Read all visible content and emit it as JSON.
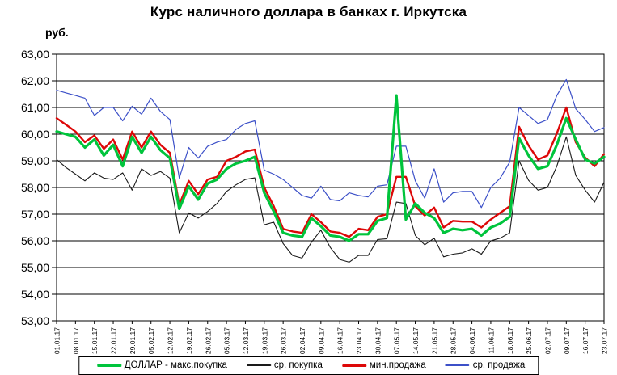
{
  "chart_data": {
    "type": "line",
    "title": "Курс наличного доллара в банках г. Иркутска",
    "y_axis_unit": "руб.",
    "ylim": [
      53,
      63
    ],
    "ytick_step": 1,
    "ytick_labels": [
      "63,00",
      "62,00",
      "61,00",
      "60,00",
      "59,00",
      "58,00",
      "57,00",
      "56,00",
      "55,00",
      "54,00",
      "53,00"
    ],
    "x_labels": [
      "01.01.17",
      "08.01.17",
      "15.01.17",
      "22.01.17",
      "29.01.17",
      "05.02.17",
      "12.02.17",
      "19.02.17",
      "26.02.17",
      "05.03.17",
      "12.03.17",
      "19.03.17",
      "26.03.17",
      "02.04.17",
      "09.04.17",
      "16.04.17",
      "23.04.17",
      "30.04.17",
      "07.05.17",
      "14.05.17",
      "21.05.17",
      "28.05.17",
      "04.06.17",
      "11.06.17",
      "18.06.17",
      "25.06.17",
      "02.07.17",
      "09.07.17",
      "16.07.17",
      "23.07.17"
    ],
    "x_points_per_label": 2,
    "grid": "horizontal",
    "legend_position": "bottom",
    "background_color": "#ffffff",
    "axis_color": "#000000",
    "series": [
      {
        "key": "dollar-max-buy",
        "name": "ДОЛЛАР - макс.покупка",
        "color": "#00c43c",
        "line_width": 3.2,
        "legend_line_height": 4,
        "values": [
          60.1,
          60.0,
          59.9,
          59.5,
          59.8,
          59.2,
          59.6,
          58.8,
          59.9,
          59.3,
          59.9,
          59.4,
          59.1,
          57.2,
          58.05,
          57.55,
          58.15,
          58.3,
          58.7,
          58.9,
          59.0,
          59.15,
          57.8,
          57.1,
          56.3,
          56.2,
          56.15,
          56.85,
          56.55,
          56.2,
          56.15,
          56.0,
          56.25,
          56.25,
          56.75,
          56.85,
          61.45,
          56.8,
          57.4,
          57.05,
          56.85,
          56.3,
          56.45,
          56.4,
          56.45,
          56.2,
          56.5,
          56.65,
          56.9,
          59.85,
          59.2,
          58.7,
          58.8,
          59.6,
          60.6,
          59.8,
          59.05,
          58.9,
          59.15
        ]
      },
      {
        "key": "avg-buy",
        "name": "ср. покупка",
        "color": "#1a1a1a",
        "line_width": 1.1,
        "legend_line_height": 1.5,
        "values": [
          59.05,
          58.75,
          58.5,
          58.25,
          58.55,
          58.35,
          58.3,
          58.55,
          57.9,
          58.7,
          58.45,
          58.6,
          58.35,
          56.3,
          57.05,
          56.85,
          57.1,
          57.4,
          57.85,
          58.1,
          58.3,
          58.36,
          56.6,
          56.7,
          55.9,
          55.45,
          55.35,
          55.95,
          56.4,
          55.75,
          55.3,
          55.2,
          55.45,
          55.45,
          56.05,
          56.08,
          57.45,
          57.4,
          56.2,
          55.85,
          56.1,
          55.4,
          55.5,
          55.55,
          55.7,
          55.5,
          56.0,
          56.1,
          56.3,
          59.0,
          58.27,
          57.9,
          58.0,
          58.8,
          59.9,
          58.45,
          57.9,
          57.45,
          58.2
        ]
      },
      {
        "key": "min-sell",
        "name": "мин.продажа",
        "color": "#dd0808",
        "line_width": 2.4,
        "legend_line_height": 3,
        "values": [
          60.6,
          60.35,
          60.1,
          59.7,
          59.95,
          59.45,
          59.8,
          59.05,
          60.1,
          59.5,
          60.1,
          59.6,
          59.3,
          57.35,
          58.25,
          57.75,
          58.3,
          58.4,
          59.0,
          59.15,
          59.35,
          59.42,
          58.0,
          57.3,
          56.45,
          56.35,
          56.3,
          57.0,
          56.7,
          56.35,
          56.3,
          56.15,
          56.45,
          56.4,
          56.9,
          57.0,
          58.4,
          58.4,
          57.3,
          56.95,
          57.25,
          56.5,
          56.75,
          56.72,
          56.72,
          56.5,
          56.8,
          57.05,
          57.3,
          60.28,
          59.58,
          59.05,
          59.2,
          60.03,
          61.0,
          59.7,
          59.12,
          58.8,
          59.25
        ]
      },
      {
        "key": "avg-sell",
        "name": "ср. продажа",
        "color": "#3c50c8",
        "line_width": 1.2,
        "legend_line_height": 1.5,
        "values": [
          61.65,
          61.55,
          61.45,
          61.35,
          60.7,
          61.0,
          61.0,
          60.5,
          61.05,
          60.75,
          61.35,
          60.85,
          60.55,
          58.35,
          59.5,
          59.1,
          59.55,
          59.7,
          59.8,
          60.18,
          60.4,
          60.5,
          58.65,
          58.5,
          58.3,
          58.0,
          57.7,
          57.6,
          58.05,
          57.55,
          57.5,
          57.8,
          57.7,
          57.65,
          58.05,
          58.1,
          59.55,
          59.55,
          58.25,
          57.6,
          58.7,
          57.45,
          57.8,
          57.85,
          57.85,
          57.25,
          58.0,
          58.35,
          58.95,
          61.0,
          60.7,
          60.4,
          60.55,
          61.45,
          62.05,
          60.95,
          60.55,
          60.1,
          60.25
        ]
      }
    ]
  }
}
